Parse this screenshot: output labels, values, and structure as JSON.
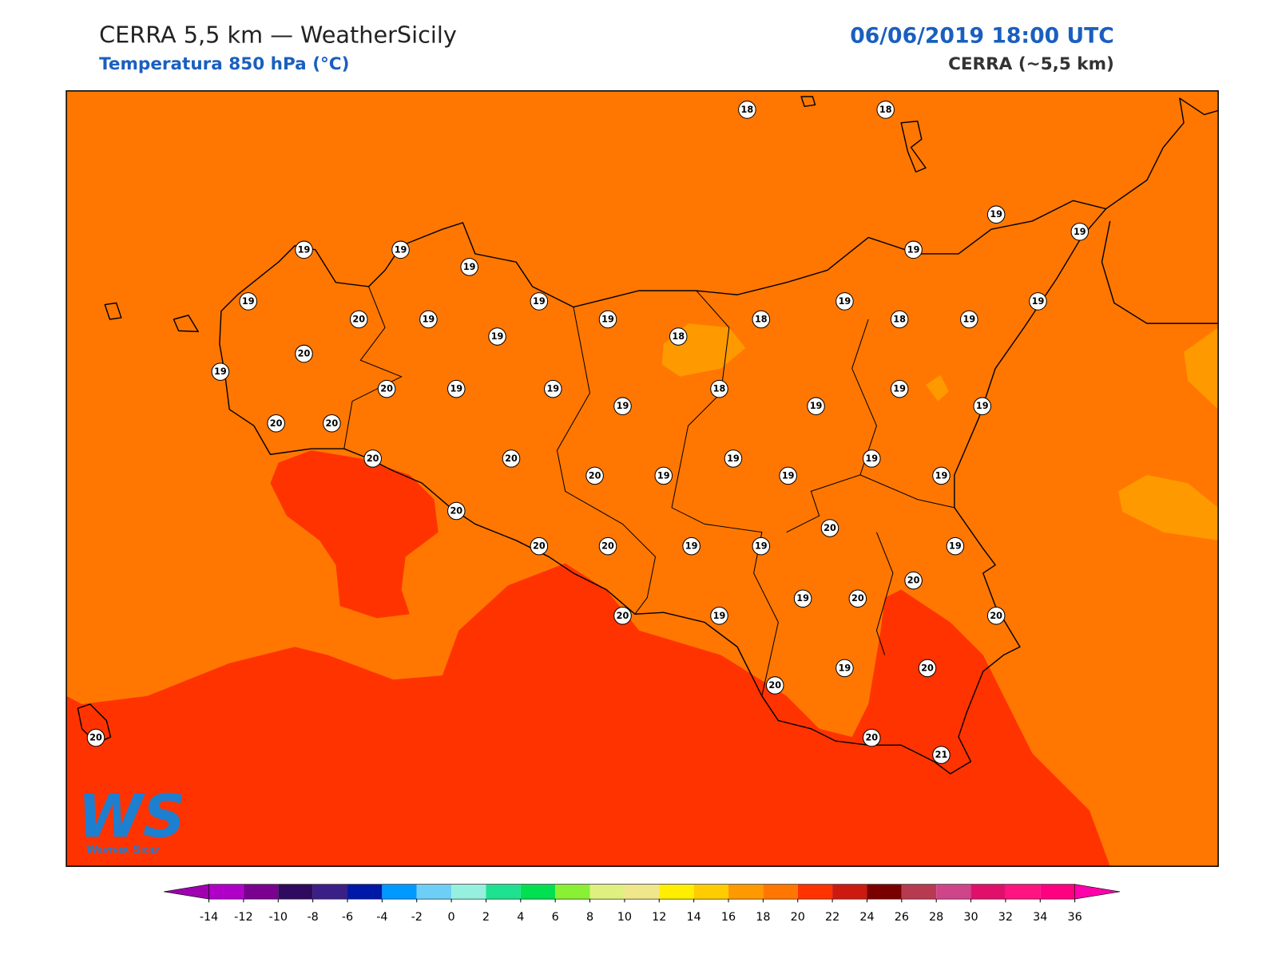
{
  "header": {
    "title": "CERRA 5,5 km — WeatherSicily",
    "subtitle": "Temperatura 850 hPa (°C)",
    "datetime": "06/06/2019 18:00 UTC",
    "model": "CERRA (~5,5 km)"
  },
  "map": {
    "station_values": [
      18,
      18,
      19,
      19,
      19,
      19,
      19,
      19,
      19,
      19,
      19,
      19,
      20,
      19,
      19,
      18,
      18,
      19,
      19,
      18,
      20,
      19,
      20,
      19,
      19,
      18,
      19,
      19,
      19,
      19,
      20,
      20,
      20,
      20,
      20,
      19,
      19,
      19,
      19,
      19,
      20,
      20,
      20,
      20,
      19,
      19,
      19,
      20,
      19,
      20,
      20,
      20,
      19,
      19,
      20,
      20,
      20,
      21,
      20
    ]
  },
  "colorbar": {
    "ticks": [
      -14,
      -12,
      -10,
      -8,
      -6,
      -4,
      -2,
      0,
      2,
      4,
      6,
      8,
      10,
      12,
      14,
      16,
      18,
      20,
      22,
      24,
      26,
      28,
      30,
      32,
      34,
      36
    ],
    "colors": [
      "#b000c8",
      "#7a0090",
      "#2f0a5e",
      "#3a1f86",
      "#0018a8",
      "#0099ff",
      "#6dcff6",
      "#96f0e0",
      "#1ee28f",
      "#00e050",
      "#8af033",
      "#e0f080",
      "#f0e68c",
      "#ffee00",
      "#ffcc00",
      "#ff9900",
      "#ff7700",
      "#ff3300",
      "#cc1a10",
      "#7a0000",
      "#b83a50",
      "#d0448a",
      "#e0106a",
      "#ff1480",
      "#ff0080"
    ],
    "under_color": "#a000b0",
    "over_color": "#ff00aa"
  },
  "logo": {
    "mark": "WS",
    "name": "Weather Sicily"
  }
}
